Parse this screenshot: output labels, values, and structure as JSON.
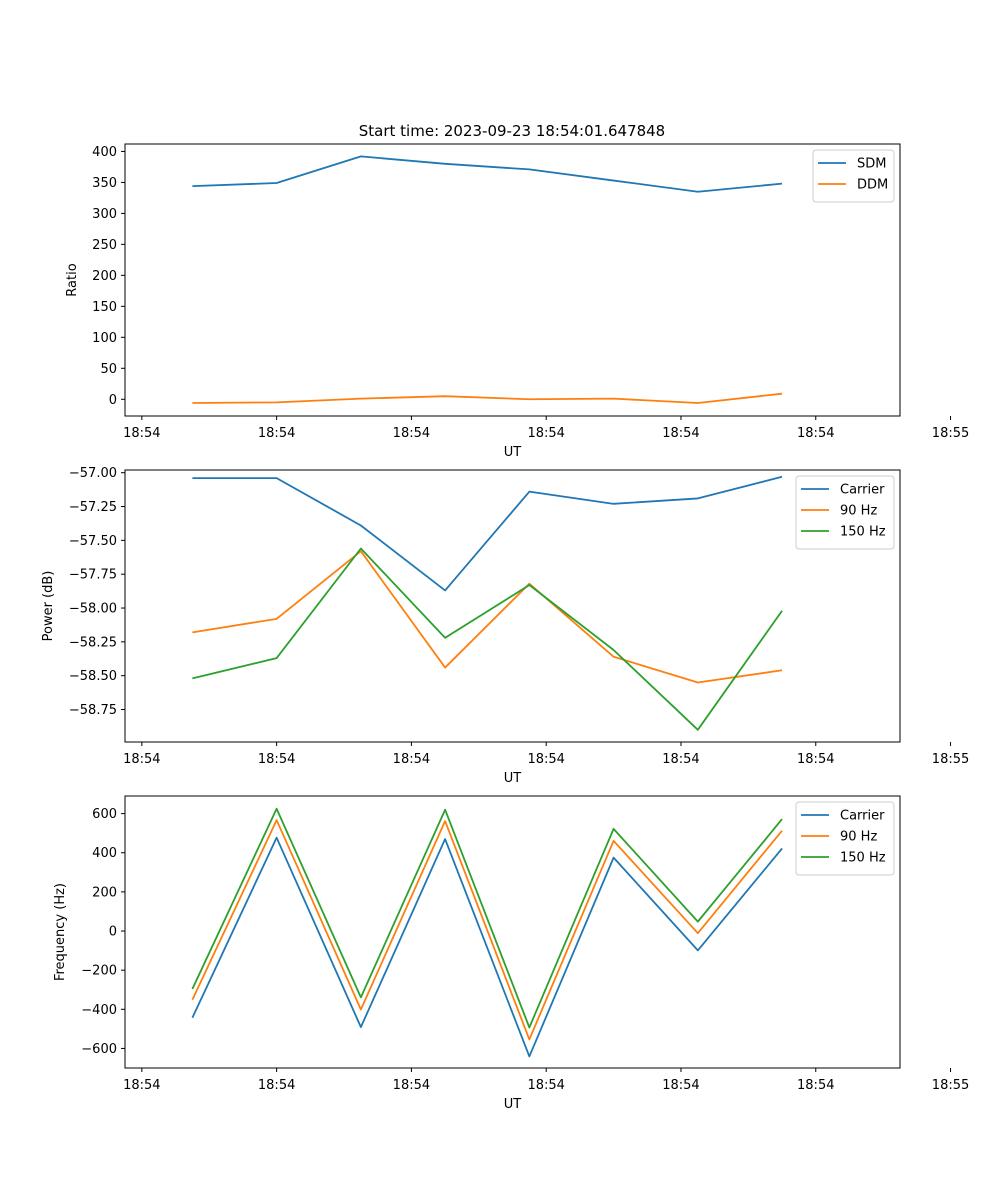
{
  "figure": {
    "title": "Start time: 2023-09-23 18:54:01.647848"
  },
  "colors": {
    "c0": "#1f77b4",
    "c1": "#ff7f0e",
    "c2": "#2ca02c"
  },
  "chart_data": [
    {
      "type": "line",
      "title": "Start time: 2023-09-23 18:54:01.647848",
      "xlabel": "UT",
      "ylabel": "Ratio",
      "x": [
        1,
        2,
        3,
        4,
        5,
        6,
        7,
        8
      ],
      "xlim": [
        0.2,
        9.4
      ],
      "xticks": [
        0.4,
        2.0,
        3.6,
        5.2,
        6.8,
        8.4,
        10.0
      ],
      "xtick_labels": [
        "18:54",
        "18:54",
        "18:54",
        "18:54",
        "18:54",
        "18:54",
        "18:55"
      ],
      "ylim": [
        -27,
        412
      ],
      "yticks": [
        0,
        50,
        100,
        150,
        200,
        250,
        300,
        350,
        400
      ],
      "ytick_labels": [
        "0",
        "50",
        "100",
        "150",
        "200",
        "250",
        "300",
        "350",
        "400"
      ],
      "legend": "top-right",
      "series": [
        {
          "name": "SDM",
          "values": [
            344,
            349,
            392,
            380,
            371,
            353,
            335,
            348
          ]
        },
        {
          "name": "DDM",
          "values": [
            -6,
            -5,
            1,
            5,
            0,
            1,
            -6,
            9
          ]
        }
      ]
    },
    {
      "type": "line",
      "xlabel": "UT",
      "ylabel": "Power (dB)",
      "x": [
        1,
        2,
        3,
        4,
        5,
        6,
        7,
        8
      ],
      "xlim": [
        0.2,
        9.4
      ],
      "xticks": [
        0.4,
        2.0,
        3.6,
        5.2,
        6.8,
        8.4,
        10.0
      ],
      "xtick_labels": [
        "18:54",
        "18:54",
        "18:54",
        "18:54",
        "18:54",
        "18:54",
        "18:55"
      ],
      "ylim": [
        -58.99,
        -56.98
      ],
      "yticks": [
        -57.0,
        -57.25,
        -57.5,
        -57.75,
        -58.0,
        -58.25,
        -58.5,
        -58.75
      ],
      "ytick_labels": [
        "−57.00",
        "−57.25",
        "−57.50",
        "−57.75",
        "−58.00",
        "−58.25",
        "−58.50",
        "−58.75"
      ],
      "legend": "top-right",
      "series": [
        {
          "name": "Carrier",
          "values": [
            -57.04,
            -57.04,
            -57.39,
            -57.87,
            -57.14,
            -57.23,
            -57.19,
            -57.03
          ]
        },
        {
          "name": "90 Hz",
          "values": [
            -58.18,
            -58.08,
            -57.58,
            -58.44,
            -57.82,
            -58.36,
            -58.55,
            -58.46
          ]
        },
        {
          "name": "150 Hz",
          "values": [
            -58.52,
            -58.37,
            -57.56,
            -58.22,
            -57.83,
            -58.31,
            -58.9,
            -58.02
          ]
        }
      ]
    },
    {
      "type": "line",
      "xlabel": "UT",
      "ylabel": "Frequency (Hz)",
      "x": [
        1,
        2,
        3,
        4,
        5,
        6,
        7,
        8
      ],
      "xlim": [
        0.2,
        9.4
      ],
      "xticks": [
        0.4,
        2.0,
        3.6,
        5.2,
        6.8,
        8.4,
        10.0
      ],
      "xtick_labels": [
        "18:54",
        "18:54",
        "18:54",
        "18:54",
        "18:54",
        "18:54",
        "18:55"
      ],
      "ylim": [
        -700,
        690
      ],
      "yticks": [
        -600,
        -400,
        -200,
        0,
        200,
        400,
        600
      ],
      "ytick_labels": [
        "−600",
        "−400",
        "−200",
        "0",
        "200",
        "400",
        "600"
      ],
      "legend": "top-right",
      "series": [
        {
          "name": "Carrier",
          "values": [
            -443,
            477,
            -491,
            470,
            -641,
            375,
            -99,
            422
          ]
        },
        {
          "name": "90 Hz",
          "values": [
            -351,
            567,
            -401,
            562,
            -554,
            461,
            -11,
            513
          ]
        },
        {
          "name": "150 Hz",
          "values": [
            -296,
            625,
            -339,
            620,
            -493,
            522,
            48,
            572
          ]
        }
      ]
    }
  ]
}
